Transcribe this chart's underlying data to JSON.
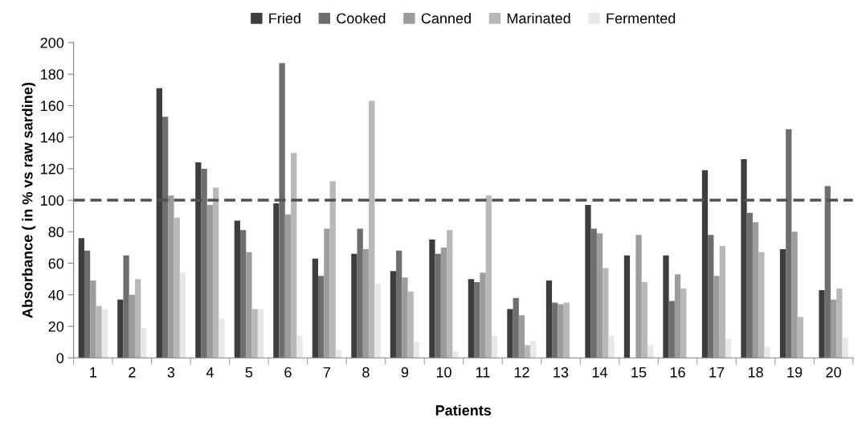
{
  "chart_data": {
    "type": "bar",
    "xlabel": "Patients",
    "ylabel": "Absorbance ( in % vs raw sardine)",
    "categories": [
      "1",
      "2",
      "3",
      "4",
      "5",
      "6",
      "7",
      "8",
      "9",
      "10",
      "11",
      "12",
      "13",
      "14",
      "15",
      "16",
      "17",
      "18",
      "19",
      "20"
    ],
    "series": [
      {
        "name": "Fried",
        "color": "#3d3d3d",
        "values": [
          76,
          37,
          171,
          124,
          87,
          98,
          63,
          66,
          55,
          75,
          50,
          31,
          49,
          97,
          65,
          65,
          119,
          126,
          69,
          43
        ]
      },
      {
        "name": "Cooked",
        "color": "#6e6e6e",
        "values": [
          68,
          65,
          153,
          120,
          81,
          187,
          52,
          82,
          68,
          66,
          48,
          38,
          35,
          82,
          null,
          36,
          78,
          92,
          145,
          109
        ]
      },
      {
        "name": "Canned",
        "color": "#9c9c9c",
        "values": [
          49,
          40,
          103,
          97,
          67,
          91,
          82,
          69,
          51,
          70,
          54,
          27,
          34,
          79,
          78,
          53,
          52,
          86,
          80,
          37
        ]
      },
      {
        "name": "Marinated",
        "color": "#b8b8b8",
        "values": [
          33,
          50,
          89,
          108,
          31,
          130,
          112,
          163,
          42,
          81,
          103,
          8,
          35,
          57,
          48,
          44,
          71,
          67,
          26,
          44
        ]
      },
      {
        "name": "Fermented",
        "color": "#e8e8e8",
        "values": [
          31,
          19,
          54,
          25,
          31,
          14,
          5,
          47,
          10,
          4,
          14,
          11,
          null,
          14,
          8,
          null,
          12,
          7,
          null,
          13
        ]
      }
    ],
    "ylim": [
      0,
      200
    ],
    "yticks": [
      0,
      20,
      40,
      60,
      80,
      100,
      120,
      140,
      160,
      180,
      200
    ],
    "ref_lines": [
      {
        "axis": "y",
        "value": 100,
        "color": "#505050",
        "line_style": "dashed"
      }
    ],
    "legend": "top",
    "grid": false
  }
}
